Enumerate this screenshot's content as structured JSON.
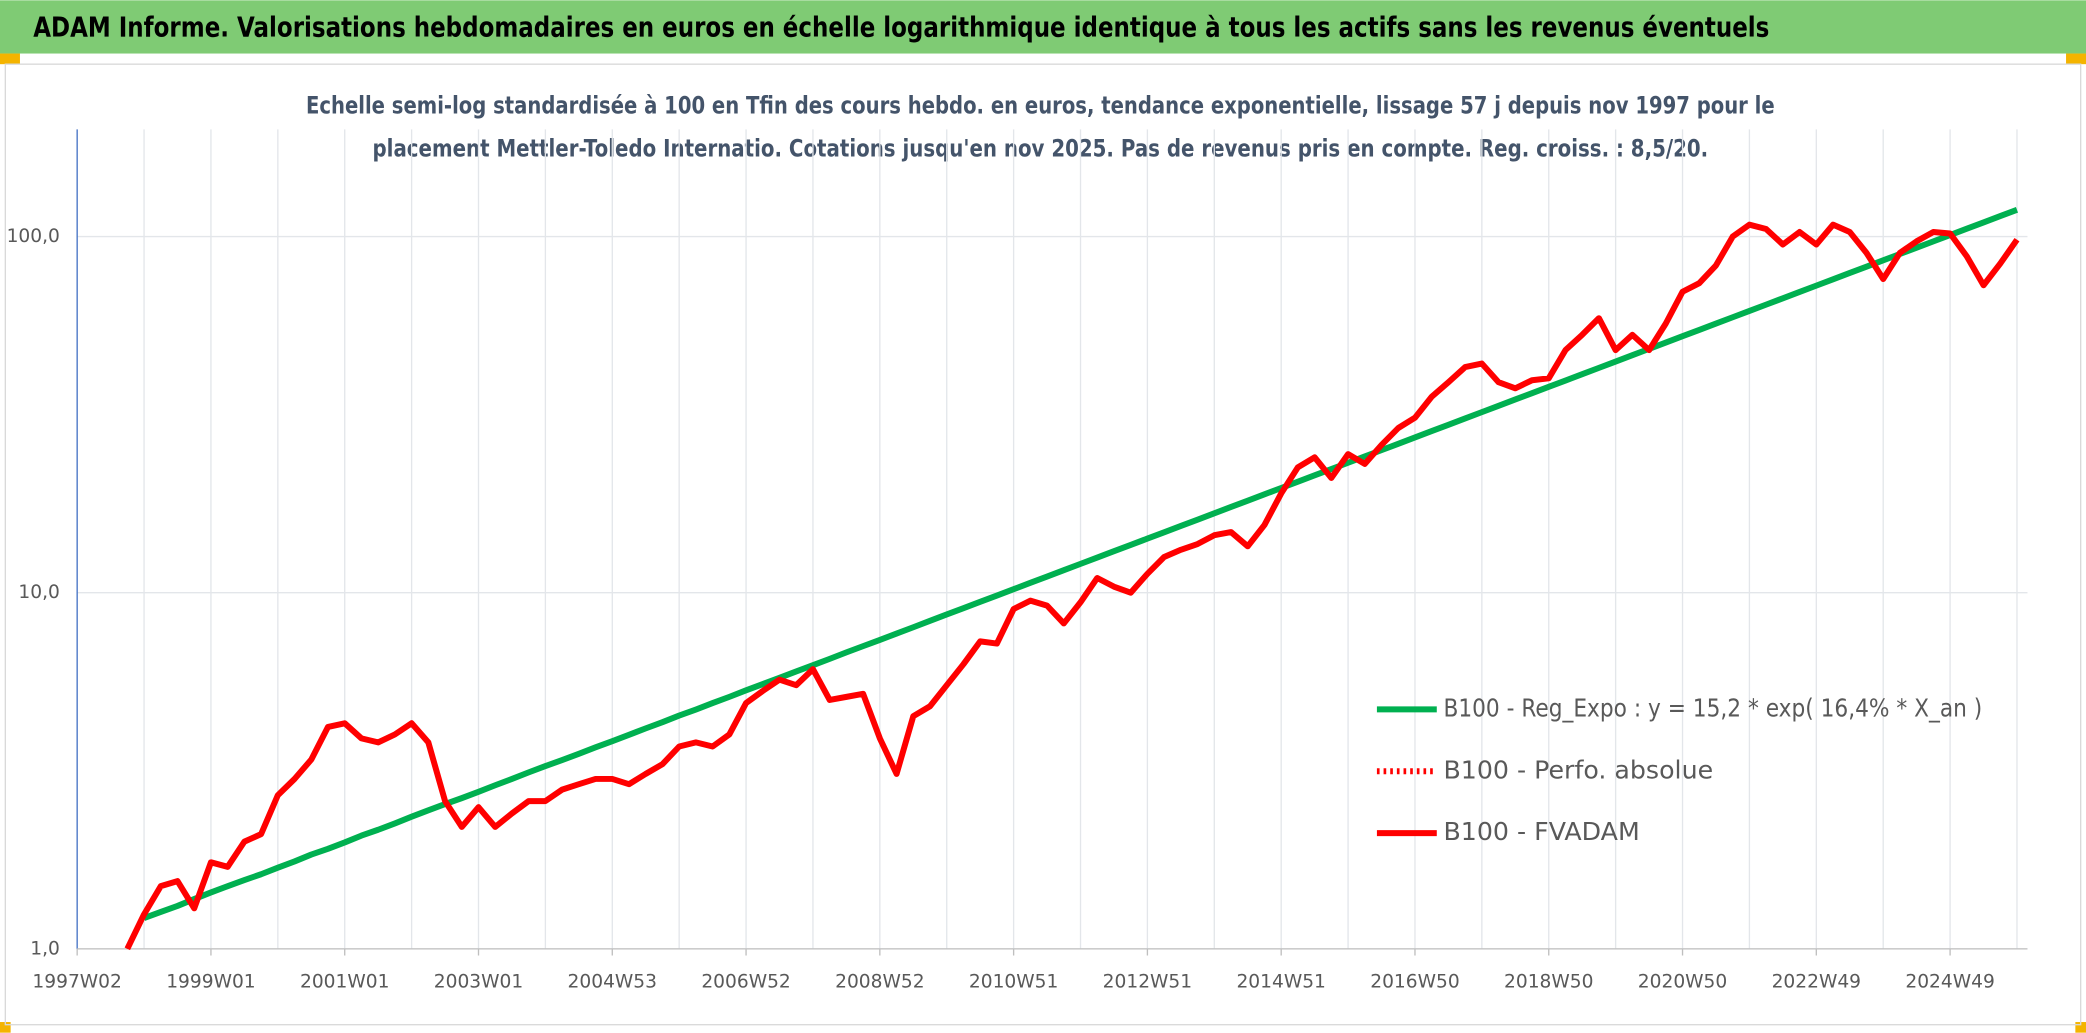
{
  "chart_data": {
    "type": "line",
    "title": "ADAM Informe. Valorisations hebdomadaires en euros en échelle logarithmique identique à tous les actifs sans les revenus éventuels",
    "subtitle": [
      "Echelle semi-log standardisée à 100 en Tfin des cours hebdo. en euros, tendance exponentielle, lissage 57 j depuis nov 1997 pour le",
      "placement Mettler-Toledo Internatio. Cotations jusqu'en nov 2025. Pas de revenus pris en compte. Reg. croiss. : 8,5/20."
    ],
    "log_scale": true,
    "ylim": [
      1,
      200
    ],
    "yticks": [
      {
        "value": 1,
        "label": "1,0"
      },
      {
        "value": 10,
        "label": "10,0"
      },
      {
        "value": 100,
        "label": "100,0"
      }
    ],
    "grid": true,
    "legend": "lower right",
    "categories": [
      "1997W02",
      null,
      null,
      null,
      null,
      null,
      null,
      null,
      "1999W01",
      null,
      null,
      null,
      null,
      null,
      null,
      null,
      "2001W01",
      null,
      null,
      null,
      null,
      null,
      null,
      null,
      "2003W01",
      null,
      null,
      null,
      null,
      null,
      null,
      null,
      "2004W53",
      null,
      null,
      null,
      null,
      null,
      null,
      null,
      "2006W52",
      null,
      null,
      null,
      null,
      null,
      null,
      null,
      "2008W52",
      null,
      null,
      null,
      null,
      null,
      null,
      null,
      "2010W51",
      null,
      null,
      null,
      null,
      null,
      null,
      null,
      "2012W51",
      null,
      null,
      null,
      null,
      null,
      null,
      null,
      "2014W51",
      null,
      null,
      null,
      null,
      null,
      null,
      null,
      "2016W50",
      null,
      null,
      null,
      null,
      null,
      null,
      null,
      "2018W50",
      null,
      null,
      null,
      null,
      null,
      null,
      null,
      "2020W50",
      null,
      null,
      null,
      null,
      null,
      null,
      null,
      "2022W49",
      null,
      null,
      null,
      null,
      null,
      null,
      null,
      "2024W49",
      null,
      null,
      null,
      null
    ],
    "series": [
      {
        "name": "B100 - Reg_Expo : y = 15,2 * exp( 16,4% *  X_an )",
        "color": "#00b050",
        "style": "solid",
        "values": [
          null,
          null,
          null,
          null,
          1.22,
          1.27,
          1.32,
          1.38,
          1.44,
          1.5,
          1.56,
          1.62,
          1.69,
          1.76,
          1.84,
          1.91,
          1.99,
          2.08,
          2.16,
          2.25,
          2.35,
          2.45,
          2.55,
          2.65,
          2.76,
          2.88,
          3.0,
          3.13,
          3.26,
          3.39,
          3.53,
          3.68,
          3.83,
          3.99,
          4.16,
          4.33,
          4.52,
          4.7,
          4.9,
          5.1,
          5.32,
          5.54,
          5.77,
          6.01,
          6.26,
          6.52,
          6.8,
          7.08,
          7.37,
          7.68,
          8.0,
          8.34,
          8.69,
          9.05,
          9.43,
          9.82,
          10.23,
          10.66,
          11.1,
          11.57,
          12.05,
          12.55,
          13.08,
          13.62,
          14.19,
          14.78,
          15.4,
          16.04,
          16.71,
          17.41,
          18.13,
          18.89,
          19.68,
          20.5,
          21.36,
          22.25,
          23.17,
          24.14,
          25.14,
          26.19,
          27.29,
          28.43,
          29.61,
          30.85,
          32.14,
          33.48,
          34.88,
          36.33,
          37.85,
          39.43,
          41.08,
          42.79,
          44.58,
          46.44,
          48.38,
          50.4,
          52.5,
          54.69,
          56.98,
          59.36,
          61.83,
          64.41,
          67.1,
          69.9,
          72.82,
          75.86,
          79.03,
          82.33,
          85.76,
          89.34,
          93.07,
          96.95,
          101.0,
          105.2,
          109.6,
          114.2,
          118.9
        ]
      },
      {
        "name": "B100 - Perfo. absolue",
        "color": "#ff0000",
        "style": "dotted"
      },
      {
        "name": "B100 - FVADAM",
        "color": "#ff0000",
        "style": "solid",
        "values": [
          null,
          null,
          null,
          1.0,
          1.25,
          1.5,
          1.55,
          1.3,
          1.75,
          1.7,
          2.0,
          2.1,
          2.7,
          3.0,
          3.4,
          4.2,
          4.3,
          3.9,
          3.8,
          4.0,
          4.3,
          3.8,
          2.6,
          2.2,
          2.5,
          2.2,
          2.4,
          2.6,
          2.6,
          2.8,
          2.9,
          3.0,
          3.0,
          2.9,
          3.1,
          3.3,
          3.7,
          3.8,
          3.7,
          4.0,
          4.9,
          5.3,
          5.7,
          5.5,
          6.1,
          5.0,
          5.1,
          5.2,
          3.9,
          3.1,
          4.5,
          4.8,
          5.5,
          6.3,
          7.3,
          7.2,
          9.0,
          9.5,
          9.2,
          8.2,
          9.4,
          11.0,
          10.4,
          10.0,
          11.3,
          12.6,
          13.2,
          13.7,
          14.5,
          14.8,
          13.5,
          15.5,
          19.0,
          22.5,
          24.0,
          21.0,
          24.5,
          23.0,
          26.0,
          29.0,
          31.0,
          35.5,
          39.0,
          43.0,
          44.0,
          39.0,
          37.5,
          39.5,
          40.0,
          48.0,
          53.0,
          59.0,
          48.0,
          53.0,
          48.0,
          57.0,
          70.0,
          74.0,
          83.0,
          100.0,
          108.0,
          105.0,
          95.0,
          103.0,
          95.0,
          108.0,
          103.0,
          90.0,
          76.0,
          90.0,
          97.0,
          103.0,
          102.0,
          88.0,
          73.0,
          84.0,
          98.0
        ]
      }
    ]
  }
}
